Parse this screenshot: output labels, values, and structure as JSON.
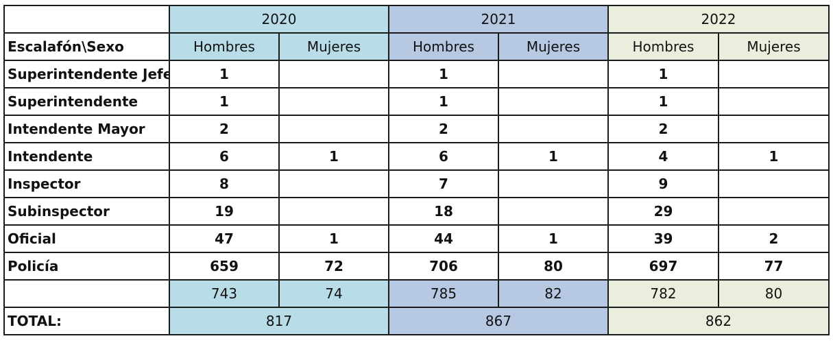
{
  "years": [
    "2020",
    "2021",
    "2022"
  ],
  "header": {
    "corner_label": "Escalafón\\Sexo",
    "subheaders": [
      "Hombres",
      "Mujeres",
      "Hombres",
      "Mujeres",
      "Hombres",
      "Mujeres"
    ]
  },
  "rows": [
    {
      "label": "Superintendente Jefe",
      "values": [
        "1",
        "",
        "1",
        "",
        "1",
        ""
      ]
    },
    {
      "label": "Superintendente",
      "values": [
        "1",
        "",
        "1",
        "",
        "1",
        ""
      ]
    },
    {
      "label": "Intendente Mayor",
      "values": [
        "2",
        "",
        "2",
        "",
        "2",
        ""
      ]
    },
    {
      "label": "Intendente",
      "values": [
        "6",
        "1",
        "6",
        "1",
        "4",
        "1"
      ]
    },
    {
      "label": "Inspector",
      "values": [
        "8",
        "",
        "7",
        "",
        "9",
        ""
      ]
    },
    {
      "label": "Subinspector",
      "values": [
        "19",
        "",
        "18",
        "",
        "29",
        ""
      ]
    },
    {
      "label": "Oficial",
      "values": [
        "47",
        "1",
        "44",
        "1",
        "39",
        "2"
      ]
    },
    {
      "label": "Policía",
      "values": [
        "659",
        "72",
        "706",
        "80",
        "697",
        "77"
      ]
    }
  ],
  "subtotals": [
    "743",
    "74",
    "785",
    "82",
    "782",
    "80"
  ],
  "total": {
    "label": "TOTAL:",
    "values": [
      "817",
      "867",
      "862"
    ]
  },
  "colors": {
    "y2020": "#b9dde8",
    "y2021": "#b7c8e3",
    "y2022": "#eaeedd"
  }
}
